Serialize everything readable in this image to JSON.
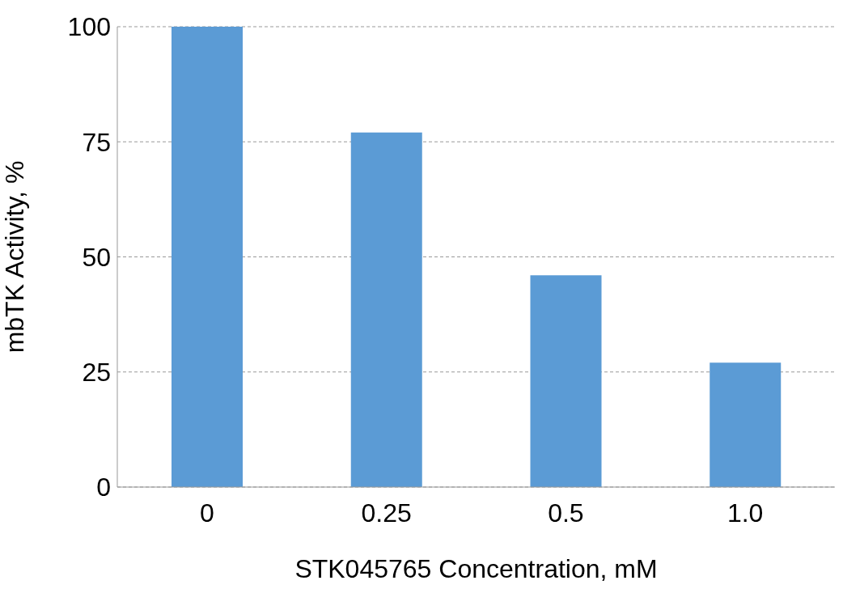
{
  "chart_data": {
    "type": "bar",
    "xlabel": "STK045765 Concentration, mM",
    "ylabel": "mbTK Activity, %",
    "categories": [
      "0",
      "0.25",
      "0.5",
      "1.0"
    ],
    "values": [
      100,
      77,
      46,
      27
    ],
    "color": "#5b9bd5",
    "ylim": [
      0,
      100
    ],
    "yticks": [
      0,
      25,
      50,
      75,
      100
    ],
    "grid": "y",
    "legend": false
  }
}
